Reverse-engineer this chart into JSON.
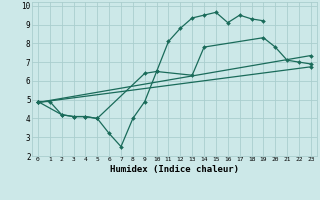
{
  "title": "",
  "xlabel": "Humidex (Indice chaleur)",
  "bg_color": "#cce8e8",
  "grid_color": "#aacece",
  "line_color": "#1a6b5a",
  "xlim": [
    -0.5,
    23.5
  ],
  "ylim": [
    2,
    10.2
  ],
  "xticks": [
    0,
    1,
    2,
    3,
    4,
    5,
    6,
    7,
    8,
    9,
    10,
    11,
    12,
    13,
    14,
    15,
    16,
    17,
    18,
    19,
    20,
    21,
    22,
    23
  ],
  "yticks": [
    2,
    3,
    4,
    5,
    6,
    7,
    8,
    9,
    10
  ],
  "line1_x": [
    0,
    1,
    2,
    3,
    4,
    5,
    6,
    7,
    8,
    9,
    10,
    11,
    12,
    13,
    14,
    15,
    16,
    17,
    18,
    19
  ],
  "line1_y": [
    4.9,
    4.9,
    4.2,
    4.1,
    4.1,
    4.0,
    3.2,
    2.5,
    4.0,
    4.9,
    6.5,
    8.1,
    8.8,
    9.35,
    9.5,
    9.65,
    9.1,
    9.5,
    9.3,
    9.2
  ],
  "line2_x": [
    0,
    2,
    3,
    4,
    5,
    9,
    10,
    13,
    14,
    19,
    20,
    21,
    22,
    23
  ],
  "line2_y": [
    4.9,
    4.2,
    4.1,
    4.1,
    4.0,
    6.4,
    6.5,
    6.3,
    7.8,
    8.3,
    7.8,
    7.1,
    7.0,
    6.9
  ],
  "line3_x": [
    0,
    23
  ],
  "line3_y": [
    4.85,
    6.75
  ],
  "line4_x": [
    0,
    23
  ],
  "line4_y": [
    4.85,
    7.35
  ]
}
